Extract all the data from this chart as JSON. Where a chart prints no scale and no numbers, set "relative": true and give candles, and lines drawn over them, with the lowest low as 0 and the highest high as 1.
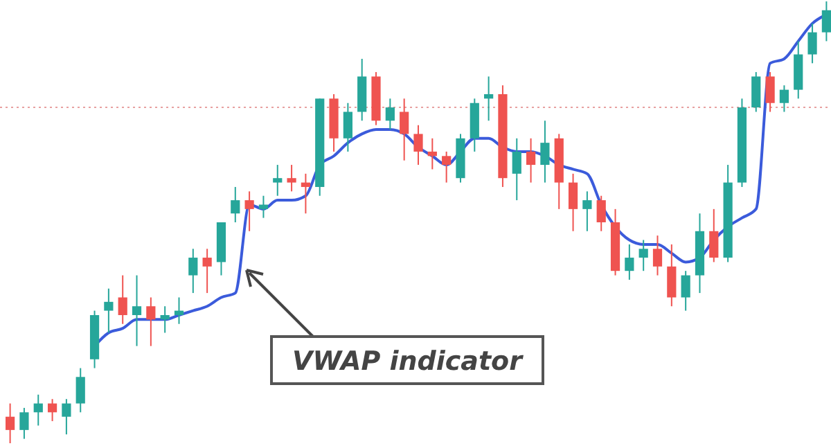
{
  "chart_data": {
    "type": "candlestick",
    "relative": true,
    "categories": [
      null,
      null,
      null,
      null,
      null,
      null,
      null,
      null,
      null,
      null,
      null,
      null,
      null,
      null,
      null,
      null,
      null,
      null,
      null,
      null,
      null,
      null,
      null,
      null,
      null,
      null,
      null,
      null,
      null,
      null,
      null,
      null,
      null,
      null,
      null,
      null,
      null,
      null,
      null,
      null,
      null,
      null,
      null,
      null,
      null,
      null,
      null,
      null,
      null,
      null,
      null,
      null,
      null,
      null,
      null,
      null,
      null,
      null,
      null
    ],
    "ohlc": [
      [
        0.06,
        0.09,
        0,
        0.03
      ],
      [
        0.03,
        0.08,
        0.01,
        0.07
      ],
      [
        0.07,
        0.11,
        0.04,
        0.09
      ],
      [
        0.09,
        0.1,
        0.05,
        0.07
      ],
      [
        0.06,
        0.1,
        0.02,
        0.09
      ],
      [
        0.09,
        0.17,
        0.07,
        0.15
      ],
      [
        0.19,
        0.3,
        0.17,
        0.29
      ],
      [
        0.3,
        0.35,
        0.25,
        0.32
      ],
      [
        0.33,
        0.38,
        0.27,
        0.29
      ],
      [
        0.29,
        0.38,
        0.22,
        0.31
      ],
      [
        0.31,
        0.33,
        0.22,
        0.28
      ],
      [
        0.28,
        0.31,
        0.25,
        0.29
      ],
      [
        0.29,
        0.33,
        0.27,
        0.3
      ],
      [
        0.38,
        0.44,
        0.34,
        0.42
      ],
      [
        0.42,
        0.44,
        0.34,
        0.4
      ],
      [
        0.41,
        0.5,
        0.38,
        0.5
      ],
      [
        0.52,
        0.58,
        0.5,
        0.55
      ],
      [
        0.55,
        0.57,
        0.48,
        0.53
      ],
      [
        0.53,
        0.56,
        0.51,
        0.54
      ],
      [
        0.59,
        0.63,
        0.56,
        0.6
      ],
      [
        0.6,
        0.63,
        0.57,
        0.59
      ],
      [
        0.59,
        0.61,
        0.52,
        0.58
      ],
      [
        0.58,
        0.78,
        0.56,
        0.78
      ],
      [
        0.78,
        0.79,
        0.66,
        0.69
      ],
      [
        0.69,
        0.77,
        0.66,
        0.75
      ],
      [
        0.75,
        0.87,
        0.73,
        0.83
      ],
      [
        0.83,
        0.84,
        0.72,
        0.73
      ],
      [
        0.73,
        0.78,
        0.71,
        0.76
      ],
      [
        0.75,
        0.78,
        0.64,
        0.7
      ],
      [
        0.7,
        0.72,
        0.63,
        0.66
      ],
      [
        0.66,
        0.69,
        0.62,
        0.65
      ],
      [
        0.65,
        0.66,
        0.59,
        0.63
      ],
      [
        0.6,
        0.7,
        0.59,
        0.69
      ],
      [
        0.69,
        0.78,
        0.66,
        0.77
      ],
      [
        0.78,
        0.83,
        0.73,
        0.79
      ],
      [
        0.79,
        0.81,
        0.58,
        0.6
      ],
      [
        0.61,
        0.69,
        0.55,
        0.66
      ],
      [
        0.66,
        0.69,
        0.59,
        0.63
      ],
      [
        0.63,
        0.73,
        0.59,
        0.68
      ],
      [
        0.69,
        0.7,
        0.53,
        0.59
      ],
      [
        0.59,
        0.61,
        0.48,
        0.53
      ],
      [
        0.53,
        0.57,
        0.48,
        0.55
      ],
      [
        0.55,
        0.56,
        0.48,
        0.5
      ],
      [
        0.5,
        0.53,
        0.38,
        0.39
      ],
      [
        0.39,
        0.45,
        0.37,
        0.42
      ],
      [
        0.42,
        0.46,
        0.39,
        0.44
      ],
      [
        0.44,
        0.47,
        0.38,
        0.4
      ],
      [
        0.4,
        0.45,
        0.31,
        0.33
      ],
      [
        0.33,
        0.39,
        0.3,
        0.38
      ],
      [
        0.38,
        0.52,
        0.34,
        0.48
      ],
      [
        0.48,
        0.53,
        0.41,
        0.42
      ],
      [
        0.42,
        0.63,
        0.41,
        0.59
      ],
      [
        0.59,
        0.78,
        0.58,
        0.76
      ],
      [
        0.76,
        0.84,
        0.75,
        0.83
      ],
      [
        0.83,
        0.84,
        0.75,
        0.77
      ],
      [
        0.77,
        0.81,
        0.75,
        0.8
      ],
      [
        0.8,
        0.91,
        0.78,
        0.88
      ],
      [
        0.88,
        0.95,
        0.86,
        0.93
      ],
      [
        0.93,
        1,
        0.91,
        0.98
      ]
    ],
    "colors": [
      "#ef5350",
      "#26a69a",
      "#26a69a",
      "#ef5350",
      "#26a69a",
      "#26a69a",
      "#26a69a",
      "#26a69a",
      "#ef5350",
      "#26a69a",
      "#ef5350",
      "#26a69a",
      "#26a69a",
      "#26a69a",
      "#ef5350",
      "#26a69a",
      "#26a69a",
      "#ef5350",
      "#26a69a",
      "#26a69a",
      "#ef5350",
      "#ef5350",
      "#26a69a",
      "#ef5350",
      "#26a69a",
      "#26a69a",
      "#ef5350",
      "#26a69a",
      "#ef5350",
      "#ef5350",
      "#ef5350",
      "#ef5350",
      "#26a69a",
      "#26a69a",
      "#26a69a",
      "#ef5350",
      "#26a69a",
      "#ef5350",
      "#26a69a",
      "#ef5350",
      "#ef5350",
      "#26a69a",
      "#ef5350",
      "#ef5350",
      "#26a69a",
      "#26a69a",
      "#ef5350",
      "#ef5350",
      "#26a69a",
      "#26a69a",
      "#ef5350",
      "#26a69a",
      "#26a69a",
      "#26a69a",
      "#ef5350",
      "#26a69a",
      "#26a69a",
      "#26a69a",
      "#26a69a"
    ],
    "series": [
      {
        "type": "line",
        "color": "#3b5bdb",
        "values": [
          null,
          null,
          null,
          null,
          null,
          null,
          0.22,
          0.25,
          0.26,
          0.28,
          0.28,
          0.28,
          0.29,
          0.3,
          0.31,
          0.33,
          0.34,
          0.54,
          0.53,
          0.55,
          0.55,
          0.56,
          0.63,
          0.65,
          0.68,
          0.7,
          0.71,
          0.71,
          0.7,
          0.67,
          0.65,
          0.63,
          0.66,
          0.69,
          0.69,
          0.67,
          0.66,
          0.66,
          0.65,
          0.63,
          0.62,
          0.61,
          0.54,
          0.49,
          0.46,
          0.45,
          0.45,
          0.43,
          0.41,
          0.42,
          0.46,
          0.49,
          0.51,
          0.53,
          0.86,
          0.87,
          0.91,
          0.95,
          0.97
        ]
      }
    ],
    "ref_lines": [
      {
        "axis": "y",
        "value": 0.76,
        "color": "#e8a0a0",
        "line_style": "dotted"
      }
    ],
    "annotations": [
      "VWAP indicator"
    ]
  }
}
